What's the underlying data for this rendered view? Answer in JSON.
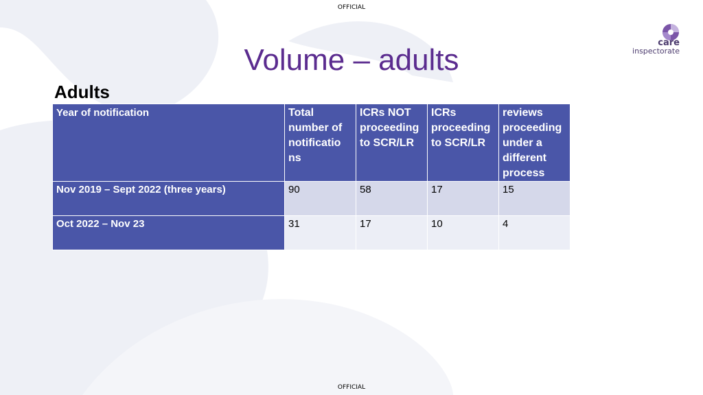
{
  "classification": "OFFICIAL",
  "logo": {
    "line1": "care",
    "line2": "inspectorate"
  },
  "title": "Volume – adults",
  "subtitle": "Adults",
  "table": {
    "headers": [
      "Year of notification",
      "Total number of notificatio ns",
      "ICRs NOT proceeding to SCR/LR",
      "ICRs proceeding to SCR/LR",
      "reviews proceeding under a different process"
    ],
    "rows": [
      {
        "label": "Nov 2019 – Sept 2022 (three years)",
        "values": [
          "90",
          "58",
          "17",
          "15"
        ]
      },
      {
        "label": "Oct 2022 – Nov 23",
        "values": [
          "31",
          "17",
          "10",
          "4"
        ]
      }
    ]
  },
  "colors": {
    "title": "#5b2c8f",
    "header_bg": "#4a56a8",
    "row1_bg": "#d5d8ea",
    "row2_bg": "#eceef6",
    "brand": "#4c3b6e"
  }
}
